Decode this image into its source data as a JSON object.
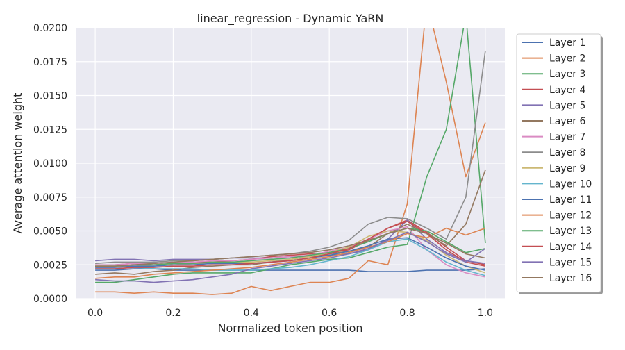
{
  "chart_data": {
    "type": "line",
    "title": "linear_regression - Dynamic YaRN",
    "xlabel": "Normalized token position",
    "ylabel": "Average attention weight",
    "xlim": [
      -0.05,
      1.05
    ],
    "ylim": [
      0.0,
      0.02
    ],
    "x_ticks": [
      0.0,
      0.2,
      0.4,
      0.6,
      0.8,
      1.0
    ],
    "x_tick_labels": [
      "0.0",
      "0.2",
      "0.4",
      "0.6",
      "0.8",
      "1.0"
    ],
    "y_ticks": [
      0.0,
      0.0025,
      0.005,
      0.0075,
      0.01,
      0.0125,
      0.015,
      0.0175,
      0.02
    ],
    "y_tick_labels": [
      "0.0000",
      "0.0025",
      "0.0050",
      "0.0075",
      "0.0100",
      "0.0125",
      "0.0150",
      "0.0175",
      "0.0200"
    ],
    "grid": true,
    "legend_position": "outside-right",
    "x": [
      0.0,
      0.05,
      0.1,
      0.15,
      0.2,
      0.25,
      0.3,
      0.35,
      0.4,
      0.45,
      0.5,
      0.55,
      0.6,
      0.65,
      0.7,
      0.75,
      0.8,
      0.85,
      0.9,
      0.95,
      1.0
    ],
    "series": [
      {
        "name": "Layer 1",
        "color": "#4c72b0",
        "values": [
          0.0021,
          0.0021,
          0.0022,
          0.0022,
          0.0021,
          0.0021,
          0.0021,
          0.0021,
          0.0021,
          0.0021,
          0.0021,
          0.0021,
          0.0021,
          0.0021,
          0.002,
          0.002,
          0.002,
          0.0021,
          0.0021,
          0.0021,
          0.0022
        ]
      },
      {
        "name": "Layer 2",
        "color": "#dd8452",
        "values": [
          0.0005,
          0.0005,
          0.0004,
          0.0005,
          0.0004,
          0.0004,
          0.0003,
          0.0004,
          0.0009,
          0.0006,
          0.0009,
          0.0012,
          0.0012,
          0.0015,
          0.0028,
          0.0025,
          0.007,
          0.022,
          0.016,
          0.009,
          0.013
        ]
      },
      {
        "name": "Layer 3",
        "color": "#55a868",
        "values": [
          0.0012,
          0.0012,
          0.0014,
          0.0016,
          0.0018,
          0.0019,
          0.0019,
          0.0019,
          0.0019,
          0.0022,
          0.0025,
          0.0027,
          0.0029,
          0.003,
          0.0034,
          0.0038,
          0.004,
          0.009,
          0.0125,
          0.021,
          0.0041
        ]
      },
      {
        "name": "Layer 4",
        "color": "#c44e52",
        "values": [
          0.0025,
          0.0025,
          0.0026,
          0.0025,
          0.0026,
          0.0027,
          0.0027,
          0.0028,
          0.0029,
          0.0031,
          0.0032,
          0.0033,
          0.0034,
          0.0036,
          0.0043,
          0.0052,
          0.0058,
          0.0049,
          0.0038,
          0.0028,
          0.0025
        ]
      },
      {
        "name": "Layer 5",
        "color": "#8172b3",
        "values": [
          0.0028,
          0.0029,
          0.0029,
          0.0028,
          0.0029,
          0.0029,
          0.0029,
          0.003,
          0.003,
          0.003,
          0.0031,
          0.0031,
          0.0032,
          0.0033,
          0.0036,
          0.0044,
          0.0058,
          0.0044,
          0.0034,
          0.0028,
          0.0026
        ]
      },
      {
        "name": "Layer 6",
        "color": "#937860",
        "values": [
          0.0018,
          0.0019,
          0.0018,
          0.002,
          0.0021,
          0.0023,
          0.0024,
          0.0025,
          0.0025,
          0.0027,
          0.0029,
          0.0031,
          0.0033,
          0.0035,
          0.0038,
          0.0048,
          0.0055,
          0.0048,
          0.0039,
          0.0055,
          0.0095
        ]
      },
      {
        "name": "Layer 7",
        "color": "#da8bc3",
        "values": [
          0.0025,
          0.0025,
          0.0026,
          0.0026,
          0.0027,
          0.0027,
          0.0028,
          0.0028,
          0.0029,
          0.003,
          0.0031,
          0.0032,
          0.0035,
          0.0038,
          0.0044,
          0.005,
          0.0053,
          0.0036,
          0.0025,
          0.0019,
          0.0016
        ]
      },
      {
        "name": "Layer 8",
        "color": "#8c8c8c",
        "values": [
          0.0026,
          0.0027,
          0.0027,
          0.0027,
          0.0028,
          0.0028,
          0.0029,
          0.003,
          0.0031,
          0.0032,
          0.0033,
          0.0035,
          0.0038,
          0.0043,
          0.0055,
          0.006,
          0.0059,
          0.0052,
          0.0044,
          0.0075,
          0.0183
        ]
      },
      {
        "name": "Layer 9",
        "color": "#ccb974",
        "values": [
          0.0024,
          0.0024,
          0.0024,
          0.0025,
          0.0025,
          0.0026,
          0.0026,
          0.0027,
          0.0027,
          0.0028,
          0.0029,
          0.0031,
          0.0034,
          0.0038,
          0.0046,
          0.005,
          0.0049,
          0.0043,
          0.0032,
          0.0024,
          0.0019
        ]
      },
      {
        "name": "Layer 10",
        "color": "#64b5cd",
        "values": [
          0.0022,
          0.0022,
          0.0023,
          0.0022,
          0.0022,
          0.0022,
          0.0021,
          0.0021,
          0.0021,
          0.0022,
          0.0023,
          0.0025,
          0.0028,
          0.0031,
          0.0036,
          0.0042,
          0.0044,
          0.0036,
          0.0027,
          0.0021,
          0.0017
        ]
      },
      {
        "name": "Layer 11",
        "color": "#4c72b0",
        "values": [
          0.0023,
          0.0023,
          0.0024,
          0.0024,
          0.0025,
          0.0025,
          0.0026,
          0.0026,
          0.0026,
          0.0027,
          0.0028,
          0.003,
          0.0032,
          0.0035,
          0.0039,
          0.0044,
          0.0045,
          0.0038,
          0.003,
          0.0024,
          0.0021
        ]
      },
      {
        "name": "Layer 12",
        "color": "#dd8452",
        "values": [
          0.0015,
          0.0016,
          0.0016,
          0.0018,
          0.0019,
          0.002,
          0.0021,
          0.0022,
          0.0023,
          0.0025,
          0.0027,
          0.0029,
          0.0031,
          0.0034,
          0.0038,
          0.0042,
          0.0048,
          0.0045,
          0.0052,
          0.0047,
          0.0052
        ]
      },
      {
        "name": "Layer 13",
        "color": "#55a868",
        "values": [
          0.0024,
          0.0024,
          0.0025,
          0.0025,
          0.0026,
          0.0026,
          0.0027,
          0.0027,
          0.0028,
          0.0029,
          0.003,
          0.0032,
          0.0034,
          0.0037,
          0.0042,
          0.0048,
          0.0052,
          0.005,
          0.0042,
          0.0034,
          0.0037
        ]
      },
      {
        "name": "Layer 14",
        "color": "#c44e52",
        "values": [
          0.0022,
          0.0022,
          0.0023,
          0.0023,
          0.0024,
          0.0024,
          0.0025,
          0.0025,
          0.0026,
          0.0027,
          0.0028,
          0.003,
          0.0033,
          0.0037,
          0.0044,
          0.0052,
          0.0057,
          0.0048,
          0.0036,
          0.0027,
          0.0024
        ]
      },
      {
        "name": "Layer 15",
        "color": "#8172b3",
        "values": [
          0.0014,
          0.0013,
          0.0013,
          0.0012,
          0.0013,
          0.0014,
          0.0016,
          0.0018,
          0.0022,
          0.0024,
          0.0026,
          0.0028,
          0.003,
          0.0033,
          0.0037,
          0.0043,
          0.0049,
          0.0042,
          0.0033,
          0.0027,
          0.0037
        ]
      },
      {
        "name": "Layer 16",
        "color": "#937860",
        "values": [
          0.0024,
          0.0024,
          0.0025,
          0.0026,
          0.0027,
          0.0028,
          0.0029,
          0.003,
          0.0031,
          0.0032,
          0.0033,
          0.0034,
          0.0036,
          0.0039,
          0.0043,
          0.0048,
          0.0052,
          0.0048,
          0.0041,
          0.0033,
          0.003
        ]
      }
    ]
  }
}
